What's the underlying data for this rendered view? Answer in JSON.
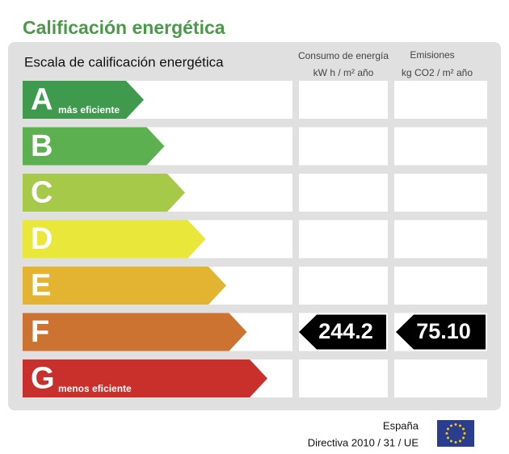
{
  "title": "Calificación energética",
  "scale_header": "Escala de calificación energética",
  "columns": [
    {
      "line1": "Consumo de energía",
      "line2": "kW h / m² año"
    },
    {
      "line1": "Emisiones",
      "line2": "kg CO2 / m² año"
    }
  ],
  "rows": [
    {
      "letter": "A",
      "note": "más eficiente",
      "color": "#3f9a4e"
    },
    {
      "letter": "B",
      "color": "#5db04f"
    },
    {
      "letter": "C",
      "color": "#a7c94a"
    },
    {
      "letter": "D",
      "color": "#eae73b"
    },
    {
      "letter": "E",
      "color": "#e3b332"
    },
    {
      "letter": "F",
      "color": "#cd7331",
      "consumption": "244.2",
      "emissions": "75.10"
    },
    {
      "letter": "G",
      "note": "menos eficiente",
      "color": "#c9302c"
    }
  ],
  "footer": {
    "country": "España",
    "directive": "Directiva 2010 / 31 / UE"
  }
}
